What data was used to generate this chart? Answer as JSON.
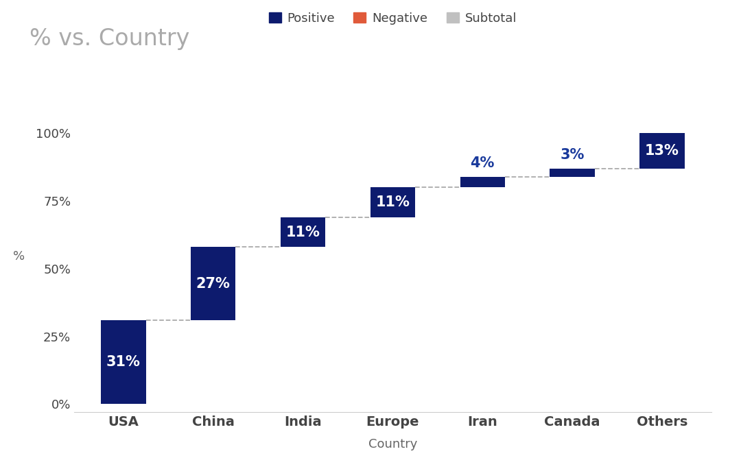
{
  "title": "% vs. Country",
  "xlabel": "Country",
  "ylabel": "%",
  "categories": [
    "USA",
    "China",
    "India",
    "Europe",
    "Iran",
    "Canada",
    "Others"
  ],
  "values": [
    31,
    27,
    11,
    11,
    4,
    3,
    13
  ],
  "bottoms": [
    0,
    31,
    58,
    69,
    80,
    84,
    87
  ],
  "labels": [
    "31%",
    "27%",
    "11%",
    "11%",
    "4%",
    "3%",
    "13%"
  ],
  "bar_color": "#0D1B6E",
  "negative_color": "#E05A3A",
  "subtotal_color": "#C0C0C0",
  "label_color_inside": "#FFFFFF",
  "label_color_outside": "#1A3A9C",
  "connector_color": "#AAAAAA",
  "background_color": "#FFFFFF",
  "title_color": "#AAAAAA",
  "axis_label_color": "#666666",
  "tick_label_color": "#444444",
  "legend_items": [
    "Positive",
    "Negative",
    "Subtotal"
  ],
  "legend_colors": [
    "#0D1B6E",
    "#E05A3A",
    "#C0C0C0"
  ],
  "yticks": [
    0,
    25,
    50,
    75,
    100
  ],
  "ytick_labels": [
    "0%",
    "25%",
    "50%",
    "75%",
    "100%"
  ],
  "ylim": [
    -3,
    112
  ],
  "title_fontsize": 24,
  "axis_label_fontsize": 13,
  "tick_fontsize": 13,
  "bar_label_fontsize": 15,
  "legend_fontsize": 13,
  "xlabel_fontsize": 13
}
